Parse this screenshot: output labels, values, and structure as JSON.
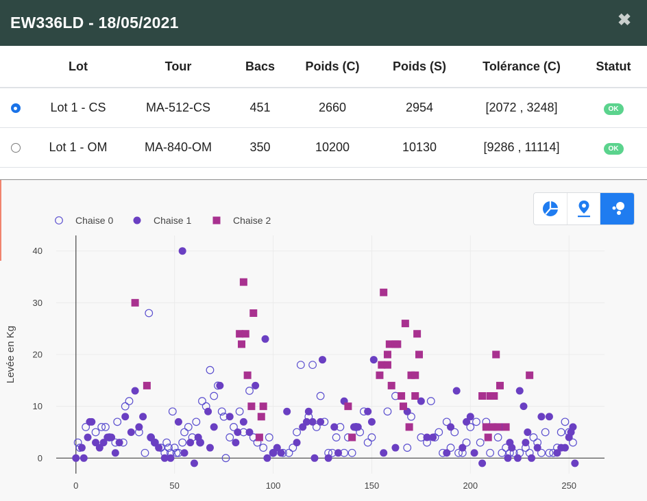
{
  "window": {
    "title": "EW336LD - 18/05/2021",
    "close_icon": "close-icon"
  },
  "table": {
    "headers": [
      "",
      "Lot",
      "Tour",
      "Bacs",
      "Poids (C)",
      "Poids (S)",
      "Tolérance (C)",
      "Statut"
    ],
    "rows": [
      {
        "selected": true,
        "lot": "Lot 1 - CS",
        "tour": "MA-512-CS",
        "bacs": "451",
        "poids_c": "2660",
        "poids_s": "2954",
        "tolerance": "[2072 , 3248]",
        "statut": "OK"
      },
      {
        "selected": false,
        "lot": "Lot 1 - OM",
        "tour": "MA-840-OM",
        "bacs": "350",
        "poids_c": "10200",
        "poids_s": "10130",
        "tolerance": "[9286 , 11114]",
        "statut": "OK"
      }
    ],
    "status_color": "#5bd38d"
  },
  "toolbar": {
    "buttons": [
      {
        "icon": "pie-chart-icon",
        "active": false
      },
      {
        "icon": "map-pin-icon",
        "active": false
      },
      {
        "icon": "scatter-icon",
        "active": true
      }
    ],
    "active_color": "#1f7cf0",
    "icon_color": "#1f7cf0"
  },
  "chart_data": {
    "type": "scatter",
    "ylabel": "Levée en Kg",
    "xlabel": "",
    "xlim": [
      -10,
      268
    ],
    "ylim": [
      -3,
      43
    ],
    "xticks": [
      0,
      50,
      100,
      150,
      200,
      250
    ],
    "yticks": [
      0,
      10,
      20,
      30,
      40
    ],
    "grid": true,
    "legend_position": "top-left",
    "series": [
      {
        "name": "Chaise 0",
        "marker": "open-circle",
        "color": "#5b4fcf",
        "points": [
          [
            1,
            3
          ],
          [
            2,
            2
          ],
          [
            5,
            6
          ],
          [
            10,
            5
          ],
          [
            13,
            6
          ],
          [
            15,
            6
          ],
          [
            17,
            4
          ],
          [
            20,
            3
          ],
          [
            21,
            7
          ],
          [
            24,
            3
          ],
          [
            25,
            10
          ],
          [
            27,
            11
          ],
          [
            32,
            5
          ],
          [
            35,
            1
          ],
          [
            37,
            28
          ],
          [
            38,
            4
          ],
          [
            40,
            3
          ],
          [
            43,
            2
          ],
          [
            45,
            1
          ],
          [
            46,
            3
          ],
          [
            47,
            2
          ],
          [
            48,
            1
          ],
          [
            49,
            9
          ],
          [
            50,
            2
          ],
          [
            51,
            1
          ],
          [
            52,
            1
          ],
          [
            54,
            3
          ],
          [
            55,
            5
          ],
          [
            57,
            6
          ],
          [
            59,
            4
          ],
          [
            61,
            7
          ],
          [
            63,
            3
          ],
          [
            64,
            11
          ],
          [
            66,
            10
          ],
          [
            68,
            17
          ],
          [
            70,
            12
          ],
          [
            72,
            14
          ],
          [
            74,
            9
          ],
          [
            75,
            8
          ],
          [
            76,
            0
          ],
          [
            78,
            4
          ],
          [
            80,
            6
          ],
          [
            83,
            9
          ],
          [
            85,
            5
          ],
          [
            88,
            13
          ],
          [
            90,
            4
          ],
          [
            92,
            3
          ],
          [
            95,
            2
          ],
          [
            98,
            4
          ],
          [
            100,
            1
          ],
          [
            105,
            1
          ],
          [
            108,
            1
          ],
          [
            110,
            2
          ],
          [
            112,
            5
          ],
          [
            114,
            18
          ],
          [
            118,
            8
          ],
          [
            120,
            18
          ],
          [
            122,
            6
          ],
          [
            124,
            12
          ],
          [
            126,
            7
          ],
          [
            128,
            1
          ],
          [
            130,
            1
          ],
          [
            132,
            4
          ],
          [
            134,
            6
          ],
          [
            136,
            1
          ],
          [
            138,
            4
          ],
          [
            140,
            1
          ],
          [
            142,
            6
          ],
          [
            144,
            5
          ],
          [
            146,
            9
          ],
          [
            148,
            3
          ],
          [
            150,
            4
          ],
          [
            158,
            9
          ],
          [
            162,
            12
          ],
          [
            168,
            2
          ],
          [
            170,
            8
          ],
          [
            175,
            4
          ],
          [
            178,
            3
          ],
          [
            180,
            11
          ],
          [
            182,
            4
          ],
          [
            184,
            5
          ],
          [
            186,
            1
          ],
          [
            188,
            7
          ],
          [
            190,
            2
          ],
          [
            192,
            5
          ],
          [
            194,
            1
          ],
          [
            196,
            1
          ],
          [
            198,
            3
          ],
          [
            200,
            6
          ],
          [
            203,
            7
          ],
          [
            205,
            3
          ],
          [
            208,
            7
          ],
          [
            210,
            1
          ],
          [
            214,
            4
          ],
          [
            216,
            1
          ],
          [
            218,
            2
          ],
          [
            220,
            1
          ],
          [
            222,
            1
          ],
          [
            225,
            1
          ],
          [
            228,
            2
          ],
          [
            230,
            1
          ],
          [
            232,
            4
          ],
          [
            234,
            3
          ],
          [
            236,
            1
          ],
          [
            238,
            5
          ],
          [
            240,
            1
          ],
          [
            242,
            1
          ],
          [
            244,
            2
          ],
          [
            246,
            5
          ],
          [
            248,
            7
          ],
          [
            250,
            5
          ],
          [
            252,
            3
          ]
        ]
      },
      {
        "name": "Chaise 1",
        "marker": "filled-circle",
        "color": "#6a3fc2",
        "points": [
          [
            0,
            0
          ],
          [
            3,
            2
          ],
          [
            4,
            0
          ],
          [
            6,
            4
          ],
          [
            7,
            7
          ],
          [
            8,
            7
          ],
          [
            10,
            3
          ],
          [
            12,
            2
          ],
          [
            14,
            3
          ],
          [
            16,
            4
          ],
          [
            18,
            4
          ],
          [
            20,
            1
          ],
          [
            22,
            3
          ],
          [
            25,
            8
          ],
          [
            28,
            5
          ],
          [
            30,
            13
          ],
          [
            32,
            6
          ],
          [
            34,
            8
          ],
          [
            38,
            4
          ],
          [
            40,
            3
          ],
          [
            42,
            2
          ],
          [
            45,
            0
          ],
          [
            48,
            0
          ],
          [
            52,
            7
          ],
          [
            54,
            40
          ],
          [
            55,
            1
          ],
          [
            58,
            3
          ],
          [
            60,
            -1
          ],
          [
            62,
            4
          ],
          [
            63,
            3
          ],
          [
            67,
            9
          ],
          [
            68,
            2
          ],
          [
            70,
            6
          ],
          [
            73,
            14
          ],
          [
            78,
            8
          ],
          [
            81,
            3
          ],
          [
            82,
            5
          ],
          [
            85,
            7
          ],
          [
            88,
            5
          ],
          [
            91,
            14
          ],
          [
            96,
            23
          ],
          [
            97,
            0
          ],
          [
            100,
            1
          ],
          [
            102,
            2
          ],
          [
            104,
            1
          ],
          [
            107,
            9
          ],
          [
            112,
            3
          ],
          [
            115,
            6
          ],
          [
            117,
            7
          ],
          [
            118,
            9
          ],
          [
            120,
            7
          ],
          [
            121,
            0
          ],
          [
            124,
            7
          ],
          [
            125,
            19
          ],
          [
            128,
            0
          ],
          [
            131,
            6
          ],
          [
            133,
            1
          ],
          [
            136,
            11
          ],
          [
            141,
            6
          ],
          [
            143,
            6
          ],
          [
            148,
            9
          ],
          [
            150,
            7
          ],
          [
            151,
            19
          ],
          [
            156,
            1
          ],
          [
            162,
            2
          ],
          [
            168,
            9
          ],
          [
            175,
            11
          ],
          [
            178,
            4
          ],
          [
            181,
            4
          ],
          [
            188,
            1
          ],
          [
            190,
            6
          ],
          [
            193,
            13
          ],
          [
            196,
            2
          ],
          [
            198,
            7
          ],
          [
            200,
            8
          ],
          [
            202,
            1
          ],
          [
            206,
            -1
          ],
          [
            208,
            6
          ],
          [
            212,
            6
          ],
          [
            213,
            6
          ],
          [
            216,
            6
          ],
          [
            219,
            0
          ],
          [
            220,
            3
          ],
          [
            221,
            2
          ],
          [
            224,
            0
          ],
          [
            225,
            13
          ],
          [
            227,
            10
          ],
          [
            228,
            3
          ],
          [
            229,
            5
          ],
          [
            231,
            0
          ],
          [
            234,
            2
          ],
          [
            236,
            8
          ],
          [
            240,
            8
          ],
          [
            244,
            1
          ],
          [
            246,
            2
          ],
          [
            248,
            2
          ],
          [
            250,
            4
          ],
          [
            251,
            5
          ],
          [
            252,
            6
          ],
          [
            253,
            -1
          ]
        ]
      },
      {
        "name": "Chaise 2",
        "marker": "filled-square",
        "color": "#a8318f",
        "points": [
          [
            30,
            30
          ],
          [
            36,
            14
          ],
          [
            83,
            24
          ],
          [
            84,
            22
          ],
          [
            85,
            34
          ],
          [
            86,
            24
          ],
          [
            87,
            16
          ],
          [
            89,
            10
          ],
          [
            90,
            28
          ],
          [
            93,
            4
          ],
          [
            94,
            8
          ],
          [
            95,
            10
          ],
          [
            138,
            10
          ],
          [
            140,
            4
          ],
          [
            154,
            16
          ],
          [
            155,
            18
          ],
          [
            156,
            32
          ],
          [
            158,
            18
          ],
          [
            158,
            20
          ],
          [
            159,
            22
          ],
          [
            160,
            14
          ],
          [
            162,
            22
          ],
          [
            163,
            22
          ],
          [
            165,
            12
          ],
          [
            166,
            10
          ],
          [
            167,
            26
          ],
          [
            169,
            6
          ],
          [
            170,
            16
          ],
          [
            172,
            12
          ],
          [
            172,
            16
          ],
          [
            173,
            24
          ],
          [
            174,
            20
          ],
          [
            206,
            12
          ],
          [
            208,
            6
          ],
          [
            209,
            4
          ],
          [
            210,
            12
          ],
          [
            211,
            6
          ],
          [
            212,
            12
          ],
          [
            213,
            20
          ],
          [
            214,
            6
          ],
          [
            215,
            14
          ],
          [
            218,
            6
          ],
          [
            230,
            16
          ]
        ]
      }
    ]
  }
}
